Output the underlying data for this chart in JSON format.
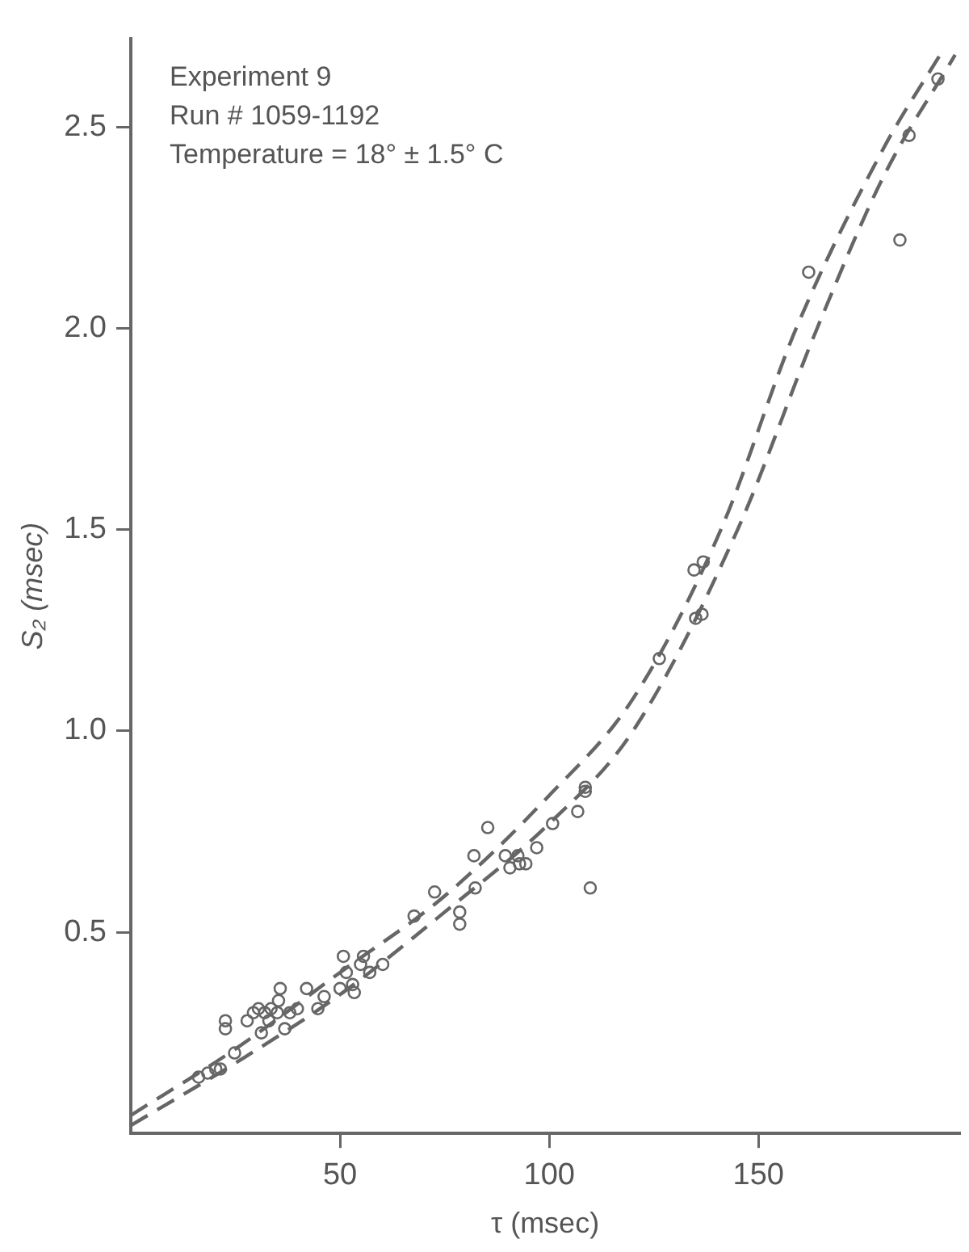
{
  "chart_data": {
    "type": "scatter",
    "xlabel": "τ (msec)",
    "ylabel": "S₂ (msec)",
    "xlim": [
      0,
      198
    ],
    "ylim": [
      0,
      2.72
    ],
    "xticks": [
      50,
      100,
      150
    ],
    "yticks": [
      {
        "value": 0.5,
        "label": "0.5"
      },
      {
        "value": 1,
        "label": "1.0"
      },
      {
        "value": 1.5,
        "label": "1.5"
      },
      {
        "value": 2,
        "label": "2.0"
      },
      {
        "value": 2.5,
        "label": "2.5"
      }
    ],
    "grid": false,
    "legend": false,
    "annotations": [
      "Experiment 9",
      "Run # 1059-1192",
      "Temperature = 18° ± 1.5° C"
    ],
    "series": [
      {
        "color": "#666666",
        "marker": "circle",
        "x": [
          16.2,
          18.4,
          20.3,
          21.4,
          24.8,
          22.6,
          22.6,
          27.8,
          29.3,
          30.5,
          31.2,
          32,
          33,
          33.5,
          35,
          35.3,
          35.7,
          36.8,
          38,
          39.8,
          42,
          44.7,
          46.2,
          50,
          50.8,
          51.5,
          53,
          53.4,
          54.9,
          55.6,
          57.1,
          60.2,
          67.7,
          72.6,
          78.6,
          78.6,
          82,
          82.3,
          85.3,
          89.5,
          90.6,
          92.5,
          92.9,
          94.4,
          97,
          100.8,
          106.8,
          108.6,
          108.6,
          109.8,
          126.3,
          134.6,
          136.8,
          135,
          136.5,
          162,
          183.8,
          186,
          192.9
        ],
        "values": [
          0.14,
          0.15,
          0.16,
          0.16,
          0.2,
          0.28,
          0.26,
          0.28,
          0.3,
          0.31,
          0.25,
          0.3,
          0.28,
          0.31,
          0.3,
          0.33,
          0.36,
          0.26,
          0.3,
          0.31,
          0.36,
          0.31,
          0.34,
          0.36,
          0.44,
          0.4,
          0.37,
          0.35,
          0.42,
          0.44,
          0.4,
          0.42,
          0.54,
          0.6,
          0.55,
          0.52,
          0.69,
          0.61,
          0.76,
          0.69,
          0.66,
          0.69,
          0.67,
          0.67,
          0.71,
          0.77,
          0.8,
          0.85,
          0.86,
          0.61,
          1.18,
          1.4,
          1.42,
          1.28,
          1.29,
          2.14,
          2.22,
          2.48,
          2.62
        ]
      },
      {
        "type": "line",
        "color": "#666666",
        "line_style": "dashed",
        "marker": "none",
        "x": [
          0,
          25,
          50,
          75,
          100,
          120,
          141,
          159,
          180,
          194
        ],
        "values": [
          0.045,
          0.21,
          0.4,
          0.59,
          0.84,
          1.08,
          1.5,
          2.0,
          2.45,
          2.69
        ]
      },
      {
        "type": "line",
        "color": "#666666",
        "line_style": "dashed",
        "marker": "none",
        "x": [
          0,
          25,
          50,
          75,
          100,
          120,
          145,
          164,
          180,
          197
        ],
        "values": [
          0.02,
          0.175,
          0.345,
          0.55,
          0.77,
          1.0,
          1.5,
          2.0,
          2.38,
          2.68
        ]
      }
    ]
  }
}
